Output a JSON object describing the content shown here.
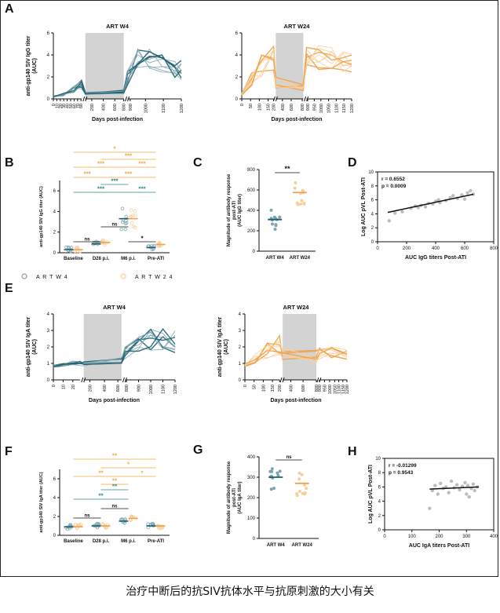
{
  "caption": "治疗中断后的抗SIV抗体水平与抗原刺激的大小有关",
  "colors": {
    "w4": "#1d5f6e",
    "w4_light": "#7fa6b0",
    "w24": "#f0a24a",
    "w24_light": "#f7cf9c",
    "shade": "#d3d3d3",
    "sig_teal": "#2e8a87",
    "sig_orange": "#f3a640",
    "axis": "#111111"
  },
  "chart_data": [
    {
      "id": "A-left",
      "panel": "A",
      "type": "line",
      "title": "ART W4",
      "ylabel": "anti-gp140 SIV IgG titer\n(AUC)",
      "xlabel": "Days post-infection",
      "yticks": [
        "0",
        "2",
        "4",
        "6"
      ],
      "xticks": [
        "0",
        "10",
        "20",
        "30",
        "40",
        "50",
        "60",
        "70",
        "80",
        "200",
        "400",
        "600",
        "800",
        "900",
        "1000",
        "1100",
        "1200"
      ],
      "series_color": "w4"
    },
    {
      "id": "A-right",
      "panel": "",
      "type": "line",
      "title": "ART W24",
      "ylabel": "",
      "xlabel": "Days post-infection",
      "yticks": [
        "0",
        "2",
        "4",
        "6"
      ],
      "xticks": [
        "0",
        "50",
        "100",
        "150",
        "200",
        "400",
        "600",
        "800",
        "900",
        "950",
        "1000",
        "1050",
        "1100",
        "1150",
        "1200"
      ],
      "series_color": "w24"
    },
    {
      "id": "B",
      "panel": "B",
      "type": "scatter",
      "ylabel": "anti-gp140 SIV IgG titer (AUC)",
      "yticks": [
        "0",
        "2",
        "4",
        "6"
      ],
      "ylim": [
        0,
        7
      ],
      "categories": [
        "Baseline",
        "D28 p.i.",
        "M6 p.i.",
        "Pre-ATI"
      ],
      "series": [
        {
          "name": "A R T  W 4",
          "medians": [
            0.3,
            0.85,
            3.3,
            0.5
          ]
        },
        {
          "name": "A R T  W 2 4",
          "medians": [
            0.3,
            1.0,
            3.3,
            0.8
          ]
        }
      ],
      "sig": {
        "teal": [
          "***",
          "***",
          "***"
        ],
        "orange": [
          "*",
          "***",
          "***",
          "***",
          "***",
          "***"
        ],
        "black": [
          "ns",
          "ns",
          "*"
        ]
      }
    },
    {
      "id": "C",
      "panel": "C",
      "type": "scatter",
      "ylabel": "Magnitude of antibody response\npost-ATI\n(AUC IgG titer)",
      "yticks": [
        "0",
        "200",
        "400",
        "600",
        "800"
      ],
      "ylim": [
        0,
        800
      ],
      "categories": [
        "ART W4",
        "ART W24"
      ],
      "medians": [
        310,
        575
      ],
      "sig": "**"
    },
    {
      "id": "D",
      "panel": "D",
      "type": "scatter",
      "xlabel": "AUC IgG titers Post-ATI",
      "ylabel": "Log AUC pVL Post-ATI",
      "xticks": [
        "0",
        "200",
        "400",
        "600",
        "800"
      ],
      "yticks": [
        "0",
        "2",
        "4",
        "6",
        "8",
        "10"
      ],
      "xlim": [
        0,
        800
      ],
      "ylim": [
        0,
        10
      ],
      "r": "r = 0.6552",
      "p": "p = 0.0009",
      "points": [
        [
          80,
          3.0
        ],
        [
          120,
          4.1
        ],
        [
          170,
          4.3
        ],
        [
          230,
          4.8
        ],
        [
          260,
          5.1
        ],
        [
          280,
          4.9
        ],
        [
          300,
          5.2
        ],
        [
          330,
          5.0
        ],
        [
          350,
          5.5
        ],
        [
          380,
          5.4
        ],
        [
          400,
          5.8
        ],
        [
          420,
          6.0
        ],
        [
          430,
          5.6
        ],
        [
          470,
          5.9
        ],
        [
          500,
          6.3
        ],
        [
          520,
          6.6
        ],
        [
          550,
          6.2
        ],
        [
          580,
          6.7
        ],
        [
          600,
          6.1
        ],
        [
          620,
          7.0
        ],
        [
          640,
          7.3
        ],
        [
          660,
          6.8
        ]
      ],
      "fit": [
        [
          70,
          4.2
        ],
        [
          660,
          6.8
        ]
      ]
    },
    {
      "id": "E-left",
      "panel": "E",
      "type": "line",
      "title": "ART W4",
      "ylabel": "anti-gp140 SIV IgA titer\n(AUC)",
      "xlabel": "Days post-infection",
      "yticks": [
        "0",
        "1",
        "2",
        "3",
        "4"
      ],
      "xticks": [
        "0",
        "10",
        "20",
        "200",
        "400",
        "600",
        "800",
        "900",
        "1000",
        "1100",
        "1200"
      ],
      "series_color": "w4"
    },
    {
      "id": "E-right",
      "panel": "",
      "type": "line",
      "title": "ART W24",
      "ylabel": "anti-gp140 SIV IgA titer\n(AUC)",
      "xlabel": "Days post-infection",
      "yticks": [
        "0",
        "1",
        "2",
        "3",
        "4"
      ],
      "xticks": [
        "0",
        "50",
        "100",
        "150",
        "200",
        "400",
        "600",
        "800",
        "900",
        "950",
        "1000",
        "1050",
        "1100",
        "1150",
        "1200"
      ],
      "series_color": "w24"
    },
    {
      "id": "F",
      "panel": "F",
      "type": "scatter",
      "ylabel": "anti-gp140 SIV IgA titer (AUC)",
      "yticks": [
        "0",
        "2",
        "4",
        "6"
      ],
      "ylim": [
        0,
        7
      ],
      "categories": [
        "Baseline",
        "D28 p.i.",
        "M6 p.i.",
        "Pre-ATI"
      ],
      "medians": [
        [
          0.9,
          0.9
        ],
        [
          1.0,
          1.0
        ],
        [
          1.5,
          1.8
        ],
        [
          1.0,
          1.0
        ]
      ],
      "sig": {
        "teal": [
          "**",
          "**"
        ],
        "orange": [
          "**",
          "**",
          "**",
          "*",
          "*"
        ],
        "black": [
          "ns",
          "ns"
        ]
      }
    },
    {
      "id": "G",
      "panel": "G",
      "type": "scatter",
      "ylabel": "Magnitude of antibody response\npost-ATI\n(AUC IgA titer)",
      "yticks": [
        "0",
        "100",
        "200",
        "300",
        "400"
      ],
      "ylim": [
        0,
        400
      ],
      "categories": [
        "ART W4",
        "ART W24"
      ],
      "medians": [
        300,
        270
      ],
      "sig": "ns"
    },
    {
      "id": "H",
      "panel": "H",
      "type": "scatter",
      "xlabel": "AUC IgA titers Post-ATI",
      "ylabel": "Log AUC pVL Post-ATI",
      "xticks": [
        "0",
        "100",
        "200",
        "300",
        "400"
      ],
      "yticks": [
        "0",
        "2",
        "4",
        "6",
        "8",
        "10"
      ],
      "xlim": [
        0,
        400
      ],
      "ylim": [
        0,
        10
      ],
      "r": "r = -0.01299",
      "p": "p = 0.9543",
      "points": [
        [
          165,
          3.0
        ],
        [
          175,
          5.5
        ],
        [
          185,
          6.2
        ],
        [
          195,
          5.0
        ],
        [
          205,
          6.5
        ],
        [
          215,
          5.8
        ],
        [
          225,
          6.0
        ],
        [
          235,
          5.2
        ],
        [
          245,
          6.8
        ],
        [
          255,
          5.9
        ],
        [
          265,
          6.3
        ],
        [
          275,
          5.6
        ],
        [
          285,
          6.1
        ],
        [
          295,
          6.6
        ],
        [
          300,
          5.0
        ],
        [
          305,
          6.2
        ],
        [
          310,
          4.6
        ],
        [
          318,
          5.8
        ],
        [
          325,
          6.4
        ],
        [
          330,
          5.5
        ],
        [
          340,
          6.0
        ]
      ],
      "fit": [
        [
          165,
          5.7
        ],
        [
          345,
          6.0
        ]
      ]
    }
  ]
}
